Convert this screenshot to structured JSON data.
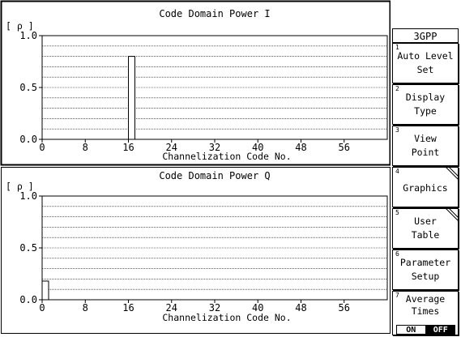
{
  "charts": [
    {
      "id": "I",
      "title": "Code Domain Power I",
      "y_unit": "[ ρ ]",
      "y_ticks": [
        "1.0",
        "0.5",
        "0.0"
      ],
      "x_ticks": [
        "0",
        "8",
        "16",
        "24",
        "32",
        "40",
        "48",
        "56"
      ],
      "x_label": "Channelization Code No."
    },
    {
      "id": "Q",
      "title": "Code Domain Power Q",
      "y_unit": "[ ρ ]",
      "y_ticks": [
        "1.0",
        "0.5",
        "0.0"
      ],
      "x_ticks": [
        "0",
        "8",
        "16",
        "24",
        "32",
        "40",
        "48",
        "56"
      ],
      "x_label": "Channelization Code No."
    }
  ],
  "chart_data": [
    {
      "type": "bar",
      "title": "Code Domain Power I",
      "xlabel": "Channelization Code No.",
      "ylabel": "[ ρ ]",
      "xlim": [
        0,
        64
      ],
      "ylim": [
        0.0,
        1.0
      ],
      "x": [
        16
      ],
      "values": [
        0.8
      ],
      "grid": true
    },
    {
      "type": "bar",
      "title": "Code Domain Power Q",
      "xlabel": "Channelization Code No.",
      "ylabel": "[ ρ ]",
      "xlim": [
        0,
        64
      ],
      "ylim": [
        0.0,
        1.0
      ],
      "x": [
        0
      ],
      "values": [
        0.18
      ],
      "grid": true
    }
  ],
  "softkeys": {
    "menu_title": "3GPP",
    "keys": [
      {
        "num": "1",
        "label1": "Auto Level",
        "label2": "Set"
      },
      {
        "num": "2",
        "label1": "Display",
        "label2": "Type"
      },
      {
        "num": "3",
        "label1": "View",
        "label2": "Point"
      },
      {
        "num": "4",
        "label1": "Graphics",
        "label2": ""
      },
      {
        "num": "5",
        "label1": "User",
        "label2": "Table"
      },
      {
        "num": "6",
        "label1": "Parameter",
        "label2": "Setup"
      },
      {
        "num": "7",
        "label1": "Average",
        "label2": "Times",
        "on": "ON",
        "off": "OFF"
      }
    ]
  }
}
